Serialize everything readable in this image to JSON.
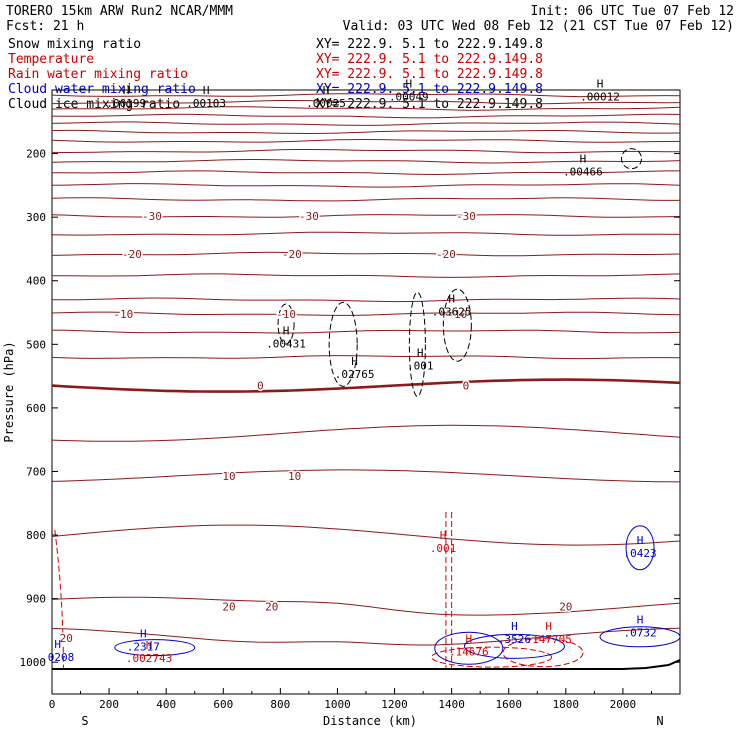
{
  "header": {
    "line1_left": "TORERO  15km ARW   Run2    NCAR/MMM",
    "line1_right": "Init: 06 UTC Tue 07 Feb 12",
    "line2_left": "Fcst:    21 h",
    "line2_right": "Valid: 03 UTC Wed 08 Feb 12 (21 CST Tue 07 Feb 12)"
  },
  "fields": [
    {
      "name": "Snow mixing ratio",
      "xy": "XY= 222.9.  5.1 to 222.9.149.8",
      "color": "#000000"
    },
    {
      "name": "Temperature",
      "xy": "XY= 222.9.  5.1 to 222.9.149.8",
      "color": "#cc0000"
    },
    {
      "name": "Rain water mixing ratio",
      "xy": "XY= 222.9.  5.1 to 222.9.149.8",
      "color": "#cc0000"
    },
    {
      "name": "Cloud water mixing ratio",
      "xy": "XY= 222.9.  5.1 to 222.9.149.8",
      "color": "#0000cc"
    },
    {
      "name": "Cloud ice mixing ratio",
      "xy": "XY= 222.9.  5.1 to 222.9.149.8",
      "color": "#000000"
    }
  ],
  "colors": {
    "temperature": "#8b1a1a",
    "rain": "#dd0000",
    "cloud_water": "#0000cc",
    "snow": "#000000",
    "terrain": "#000000"
  },
  "chart_data": {
    "type": "cross-section contour",
    "xlabel": "Distance (km)",
    "ylabel": "Pressure (hPa)",
    "xlim": [
      0,
      2200
    ],
    "ylim_hpa": [
      100,
      1050
    ],
    "x_ticks": [
      0,
      200,
      400,
      600,
      800,
      1000,
      1200,
      1400,
      1600,
      1800,
      2000
    ],
    "y_ticks": [
      200,
      300,
      400,
      500,
      600,
      700,
      800,
      900,
      1000
    ],
    "end_labels": {
      "left": "S",
      "right": "N"
    },
    "temperature_contours": [
      {
        "value": -30,
        "label": "-30",
        "hpa": 298,
        "label_x_km": [
          350,
          900,
          1450
        ]
      },
      {
        "value": -20,
        "label": "-20",
        "hpa": 358,
        "label_x_km": [
          280,
          840,
          1380
        ]
      },
      {
        "value": -10,
        "label": "-10",
        "hpa": 452,
        "label_x_km": [
          250,
          820,
          1420
        ]
      },
      {
        "value": 0,
        "label": "0",
        "hpa": 565,
        "label_x_km": [
          730,
          1450
        ]
      },
      {
        "value": 10,
        "label": "10",
        "hpa": 707,
        "label_x_km": [
          620,
          850
        ]
      },
      {
        "value": 20,
        "label": "20",
        "hpa": 912,
        "label_x_km": [
          620,
          770,
          1800
        ]
      },
      {
        "value": 20,
        "label": "20",
        "hpa": 962,
        "label_x_km": [
          50
        ]
      }
    ],
    "maxima": [
      {
        "field": "snow",
        "label": ".00199",
        "x_km": 260,
        "hpa": 122
      },
      {
        "field": "snow",
        "label": ".00103",
        "x_km": 540,
        "hpa": 122
      },
      {
        "field": "snow",
        "label": ".00025",
        "x_km": 960,
        "hpa": 122
      },
      {
        "field": "snow",
        "label": ".00049",
        "x_km": 1250,
        "hpa": 112
      },
      {
        "field": "snow",
        "label": ".00012",
        "x_km": 1920,
        "hpa": 112
      },
      {
        "field": "snow",
        "label": ".00466",
        "x_km": 1860,
        "hpa": 230
      },
      {
        "field": "snow",
        "label": ".00431",
        "x_km": 820,
        "hpa": 500
      },
      {
        "field": "snow",
        "label": ".02765",
        "x_km": 1060,
        "hpa": 548
      },
      {
        "field": "snow",
        "label": ".001",
        "x_km": 1290,
        "hpa": 535
      },
      {
        "field": "snow",
        "label": ".03625",
        "x_km": 1400,
        "hpa": 450
      },
      {
        "field": "rain",
        "label": ".001",
        "x_km": 1370,
        "hpa": 822
      },
      {
        "field": "rain",
        "label": ".002743",
        "x_km": 340,
        "hpa": 995
      },
      {
        "field": "rain",
        "label": ".14676",
        "x_km": 1460,
        "hpa": 985
      },
      {
        "field": "rain",
        "label": ".147705",
        "x_km": 1740,
        "hpa": 965
      },
      {
        "field": "cloud_water",
        "label": ".2317",
        "x_km": 320,
        "hpa": 977
      },
      {
        "field": "cloud_water",
        "label": ".0208",
        "x_km": 20,
        "hpa": 993
      },
      {
        "field": "cloud_water",
        "label": ".0423",
        "x_km": 2060,
        "hpa": 830
      },
      {
        "field": "cloud_water",
        "label": ".0732",
        "x_km": 2060,
        "hpa": 955
      },
      {
        "field": "cloud_water",
        "label": ".3526",
        "x_km": 1620,
        "hpa": 965
      }
    ]
  }
}
